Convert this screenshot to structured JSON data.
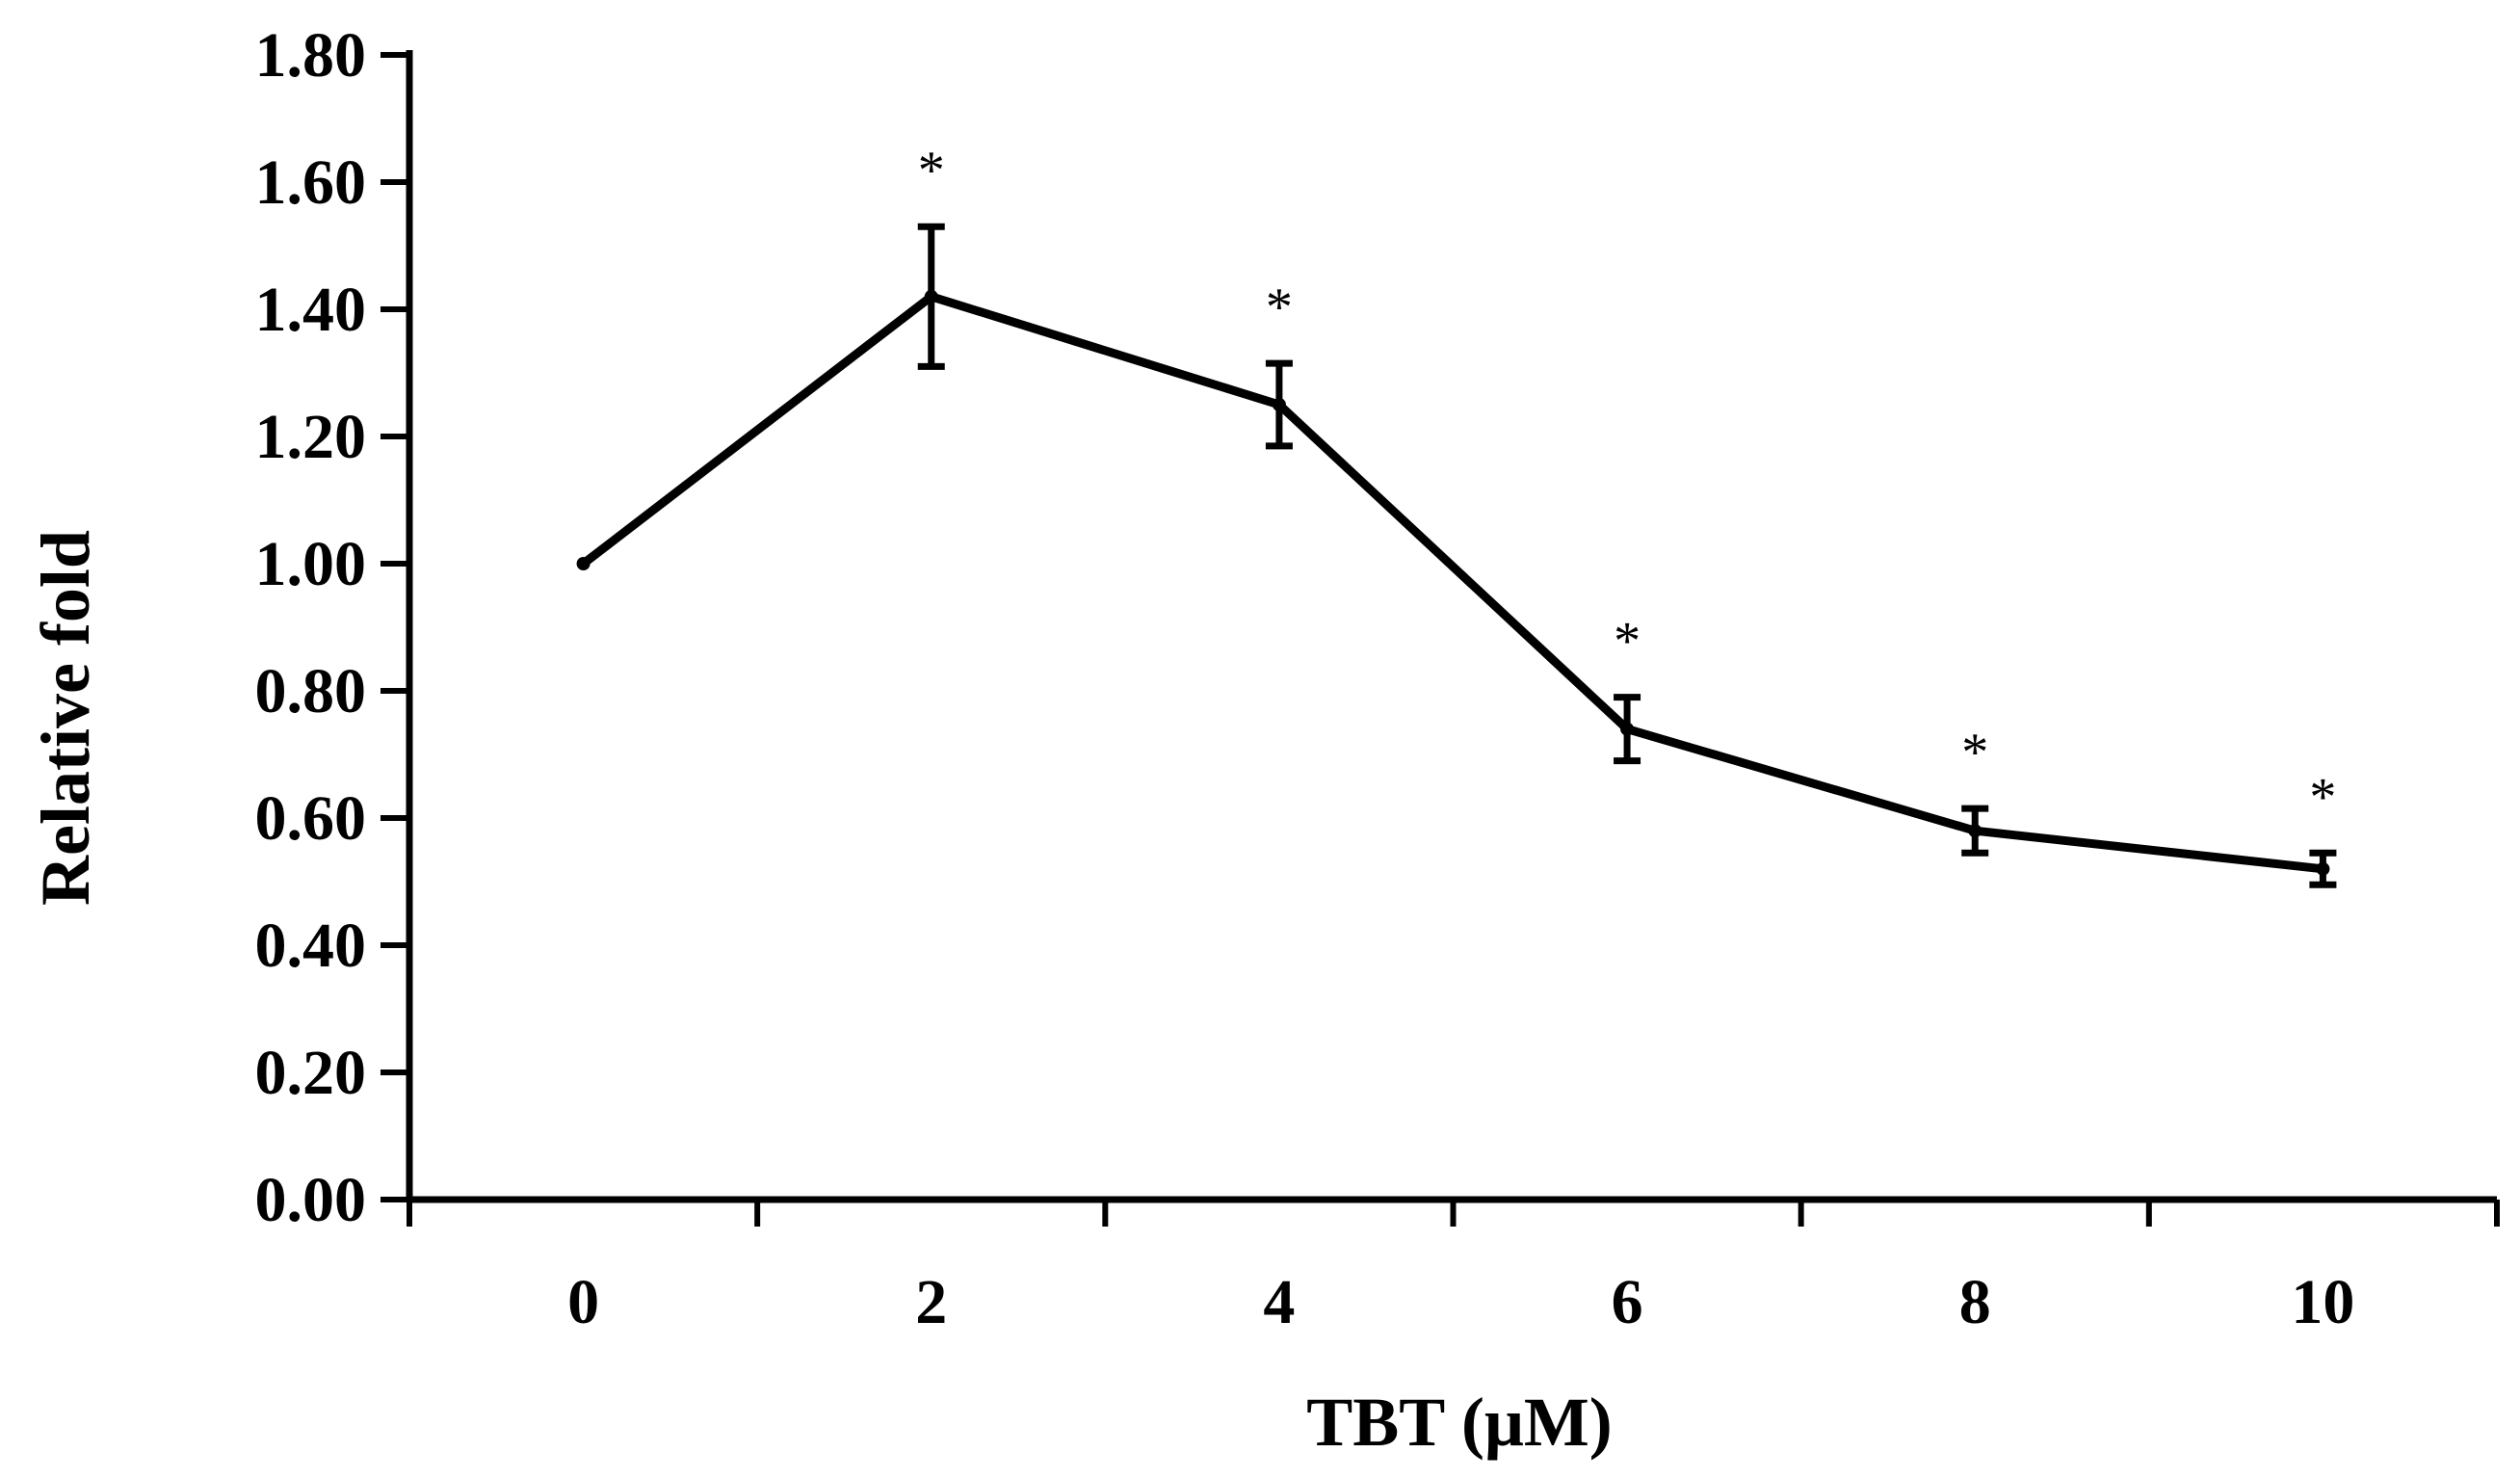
{
  "chart_data": {
    "type": "line",
    "title": "",
    "xlabel": "TBT (μM)",
    "ylabel": "Relative fold",
    "categories": [
      "0",
      "2",
      "4",
      "6",
      "8",
      "10"
    ],
    "yticks": [
      "0.00",
      "0.20",
      "0.40",
      "0.60",
      "0.80",
      "1.00",
      "1.20",
      "1.40",
      "1.60",
      "1.80"
    ],
    "ylim": [
      0,
      1.8
    ],
    "grid": false,
    "series": [
      {
        "name": "Relative fold",
        "values": [
          1.0,
          1.42,
          1.25,
          0.74,
          0.58,
          0.52
        ],
        "errors": [
          0.0,
          0.11,
          0.065,
          0.05,
          0.035,
          0.025
        ],
        "significance": [
          "",
          "*",
          "*",
          "*",
          "*",
          "*"
        ]
      }
    ]
  }
}
